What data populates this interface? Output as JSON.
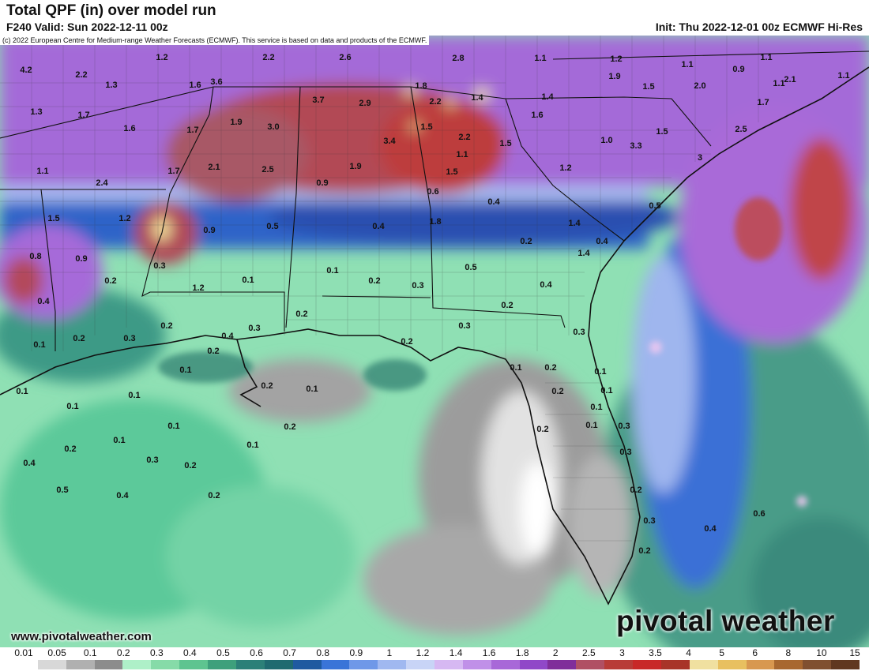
{
  "header": {
    "title": "Total QPF (in) over model run",
    "valid": "F240 Valid: Sun 2022-12-11 00z",
    "init": "Init: Thu 2022-12-01 00z ECMWF Hi-Res"
  },
  "copyright": "(c) 2022 European Centre for Medium-range Weather Forecasts (ECMWF). This service is based on data and products of the ECMWF.",
  "footer": {
    "website": "www.pivotalweather.com",
    "brand": "pivotal weather"
  },
  "legend": {
    "ticks": [
      "0.01",
      "0.05",
      "0.1",
      "0.2",
      "0.3",
      "0.4",
      "0.5",
      "0.6",
      "0.7",
      "0.8",
      "0.9",
      "1",
      "1.2",
      "1.4",
      "1.6",
      "1.8",
      "2",
      "2.5",
      "3",
      "3.5",
      "4",
      "5",
      "6",
      "8",
      "10",
      "15"
    ],
    "colors": [
      "#ffffff",
      "#d8d8d8",
      "#b0b0b0",
      "#8c8c8c",
      "#aef0c8",
      "#86dba8",
      "#5ec490",
      "#3ea07c",
      "#2c8078",
      "#1f6a70",
      "#1f5aa0",
      "#3a74d8",
      "#6f98e8",
      "#a0b8f0",
      "#c8d4f6",
      "#d6b8f2",
      "#c090e8",
      "#a868d8",
      "#9048c8",
      "#802e9a",
      "#b05064",
      "#b83c38",
      "#c82828",
      "#a83428",
      "#f0e0a0",
      "#e8c060",
      "#d89850",
      "#a86830",
      "#805030",
      "#603820"
    ]
  },
  "map_labels": [
    {
      "t": "4.2",
      "v": 0
    },
    {
      "t": "2.2",
      "v": 0
    },
    {
      "t": "1.2",
      "v": 0
    },
    {
      "t": "2.2",
      "v": 0
    },
    {
      "t": "2.6",
      "v": 0
    },
    {
      "t": "2.8",
      "v": 0
    },
    {
      "t": "1.1",
      "v": 0
    },
    {
      "t": "1.2",
      "v": 0
    },
    {
      "t": "1.1",
      "v": 0
    },
    {
      "t": "1.1",
      "v": 0
    },
    {
      "t": "0.9",
      "v": 0
    },
    {
      "t": "1.1",
      "v": 0
    },
    {
      "t": "1.3",
      "v": 0
    },
    {
      "t": "1.6",
      "v": 0
    },
    {
      "t": "3.6",
      "v": 0
    },
    {
      "t": "1.8",
      "v": 0
    },
    {
      "t": "1.9",
      "v": 0
    },
    {
      "t": "1.5",
      "v": 0
    },
    {
      "t": "2.0",
      "v": 0
    },
    {
      "t": "1.1",
      "v": 0
    },
    {
      "t": "2.1",
      "v": 0
    },
    {
      "t": "3.7",
      "v": 0
    },
    {
      "t": "2.9",
      "v": 0
    },
    {
      "t": "2.2",
      "v": 0
    },
    {
      "t": "1.4",
      "v": 0
    },
    {
      "t": "1.4",
      "v": 0
    },
    {
      "t": "1.7",
      "v": 0
    },
    {
      "t": "1.3",
      "v": 0
    },
    {
      "t": "1.7",
      "v": 0
    },
    {
      "t": "1.6",
      "v": 0
    },
    {
      "t": "1.7",
      "v": 0
    },
    {
      "t": "1.9",
      "v": 0
    },
    {
      "t": "3.0",
      "v": 0
    },
    {
      "t": "1.5",
      "v": 0
    },
    {
      "t": "1.6",
      "v": 0
    },
    {
      "t": "1.5",
      "v": 0
    },
    {
      "t": "2.5",
      "v": 0
    },
    {
      "t": "3.4",
      "v": 0
    },
    {
      "t": "2.2",
      "v": 0
    },
    {
      "t": "1.5",
      "v": 0
    },
    {
      "t": "1.0",
      "v": 0
    },
    {
      "t": "3.3",
      "v": 0
    },
    {
      "t": "1.1",
      "v": 0
    },
    {
      "t": "1.1",
      "v": 0
    },
    {
      "t": "3",
      "v": 0
    },
    {
      "t": "1.7",
      "v": 0
    },
    {
      "t": "2.1",
      "v": 0
    },
    {
      "t": "2.5",
      "v": 0
    },
    {
      "t": "1.9",
      "v": 0
    },
    {
      "t": "1.5",
      "v": 0
    },
    {
      "t": "1.2",
      "v": 0
    },
    {
      "t": "2.4",
      "v": 0
    },
    {
      "t": "0.9",
      "v": 0
    },
    {
      "t": "0.6",
      "v": 0
    },
    {
      "t": "0.4",
      "v": 0
    },
    {
      "t": "0.5",
      "v": 0
    },
    {
      "t": "1.5",
      "v": 0
    },
    {
      "t": "1.8",
      "v": 0
    },
    {
      "t": "1.2",
      "v": 0
    },
    {
      "t": "0.9",
      "v": 0
    },
    {
      "t": "0.5",
      "v": 0
    },
    {
      "t": "0.4",
      "v": 0
    },
    {
      "t": "0.4",
      "v": 0
    },
    {
      "t": "0.2",
      "v": 0
    },
    {
      "t": "1.4",
      "v": 0
    },
    {
      "t": "1.4",
      "v": 0
    },
    {
      "t": "0.8",
      "v": 0
    },
    {
      "t": "0.9",
      "v": 0
    },
    {
      "t": "0.3",
      "v": 0
    },
    {
      "t": "0.2",
      "v": 0
    },
    {
      "t": "0.1",
      "v": 0
    },
    {
      "t": "0.2",
      "v": 0
    },
    {
      "t": "0.3",
      "v": 0
    },
    {
      "t": "0.5",
      "v": 0
    },
    {
      "t": "0.4",
      "v": 0
    },
    {
      "t": "1.2",
      "v": 0
    },
    {
      "t": "0.1",
      "v": 0
    },
    {
      "t": "0.4",
      "v": 0
    },
    {
      "t": "0.2",
      "v": 0
    },
    {
      "t": "0.2",
      "v": 0
    },
    {
      "t": "0.2",
      "v": 0
    },
    {
      "t": "0.4",
      "v": 0
    },
    {
      "t": "0.3",
      "v": 0
    },
    {
      "t": "0.3",
      "v": 0
    },
    {
      "t": "0.3",
      "v": 0
    },
    {
      "t": "0.2",
      "v": 0
    },
    {
      "t": "0.3",
      "v": 0
    },
    {
      "t": "0.2",
      "v": 0
    },
    {
      "t": "0.1",
      "v": 0
    },
    {
      "t": "0.2",
      "v": 0
    },
    {
      "t": "0.1",
      "v": 0
    },
    {
      "t": "0.1",
      "v": 0
    },
    {
      "t": "0.2",
      "v": 0
    },
    {
      "t": "0.1",
      "v": 0
    },
    {
      "t": "0.1",
      "v": 0
    },
    {
      "t": "0.1",
      "v": 0
    },
    {
      "t": "0.2",
      "v": 0
    },
    {
      "t": "0.1",
      "v": 0
    },
    {
      "t": "0.2",
      "v": 0
    },
    {
      "t": "0.1",
      "v": 0
    },
    {
      "t": "0.1",
      "v": 0
    },
    {
      "t": "0.1",
      "v": 0
    },
    {
      "t": "0.2",
      "v": 0
    },
    {
      "t": "0.1",
      "v": 0
    },
    {
      "t": "0.2",
      "v": 0
    },
    {
      "t": "0.1",
      "v": 0
    },
    {
      "t": "0.3",
      "v": 0
    },
    {
      "t": "0.1",
      "v": 0
    },
    {
      "t": "0.1",
      "v": 0
    },
    {
      "t": "0.2",
      "v": 0
    },
    {
      "t": "0.3",
      "v": 0
    },
    {
      "t": "0.2",
      "v": 0
    },
    {
      "t": "0.4",
      "v": 0
    },
    {
      "t": "0.3",
      "v": 0
    },
    {
      "t": "0.2",
      "v": 0
    },
    {
      "t": "0.5",
      "v": 0
    },
    {
      "t": "0.4",
      "v": 0
    },
    {
      "t": "0.2",
      "v": 0
    },
    {
      "t": "0.3",
      "v": 0
    },
    {
      "t": "0.4",
      "v": 0
    },
    {
      "t": "0.6",
      "v": 0
    },
    {
      "t": "0.2",
      "v": 0
    }
  ]
}
